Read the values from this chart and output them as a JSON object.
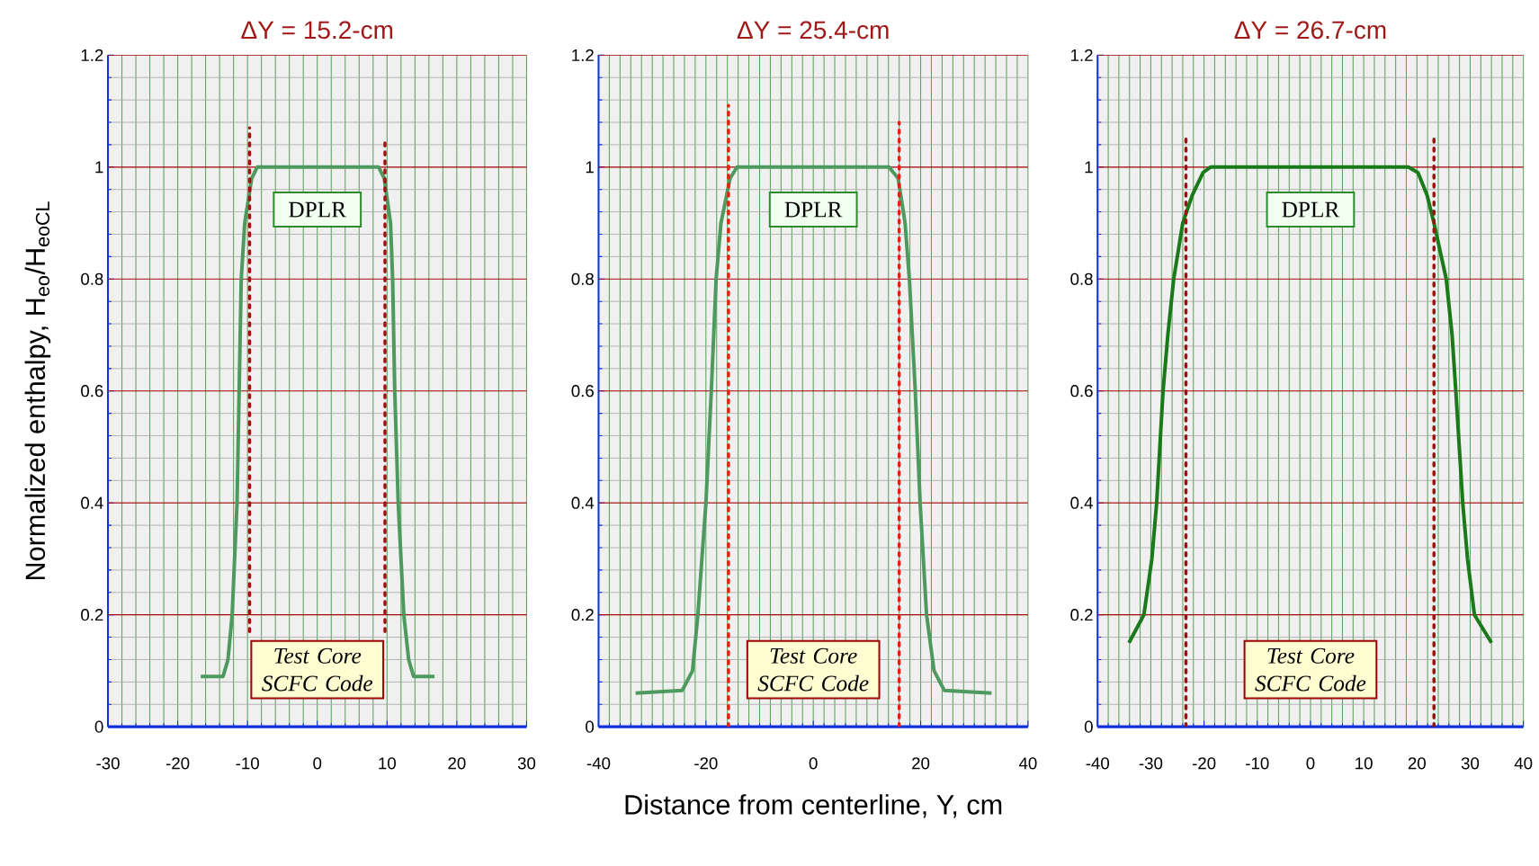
{
  "chart_data": [
    {
      "type": "line",
      "title": "ΔY = 15.2-cm",
      "ylabel": "Normalized enthalpy, H$_{eo}$/H$_{eoCL}$",
      "xlim": [
        -30,
        30
      ],
      "xticks": [
        -30,
        -20,
        -10,
        0,
        10,
        20,
        30
      ],
      "ylim": [
        0,
        1.2
      ],
      "yticks": [
        0,
        0.2,
        0.4,
        0.6,
        0.8,
        1,
        1.2
      ],
      "grid": true,
      "annotations": [
        "DPLR",
        "Test Core SCFC Code"
      ],
      "series": [
        {
          "color": "#4e9a5e",
          "x": [
            -16.7,
            -13.5,
            -12.8,
            -12.2,
            -11.5,
            -11.2,
            -10.9,
            -10.4,
            -9.4,
            -8.6,
            0,
            8.8,
            9.6,
            10.5,
            10.8,
            11.1,
            11.6,
            12.4,
            13.1,
            13.8,
            16.8
          ],
          "values": [
            0.09,
            0.09,
            0.12,
            0.2,
            0.4,
            0.6,
            0.8,
            0.9,
            0.98,
            1,
            1,
            1,
            0.98,
            0.9,
            0.8,
            0.6,
            0.4,
            0.2,
            0.12,
            0.09,
            0.09
          ]
        },
        {
          "color": "#a01010",
          "line_style": "dotted",
          "x": [
            -9.7,
            -9.7
          ],
          "values": [
            0.17,
            1.07
          ]
        },
        {
          "color": "#a01010",
          "line_style": "dotted",
          "x": [
            9.7,
            9.7
          ],
          "values": [
            0.17,
            1.05
          ]
        }
      ]
    },
    {
      "type": "line",
      "title": "ΔY = 25.4-cm",
      "xlabel": "Distance from centerline, Y, cm",
      "xlim": [
        -40,
        40
      ],
      "xticks": [
        -40,
        -20,
        0,
        20,
        40
      ],
      "ylim": [
        0,
        1.2
      ],
      "yticks": [
        0,
        0.2,
        0.4,
        0.6,
        0.8,
        1,
        1.2
      ],
      "grid": true,
      "annotations": [
        "DPLR",
        "Test Core SCFC Code"
      ],
      "series": [
        {
          "color": "#4e9a5e",
          "x": [
            -33.1,
            -24.4,
            -22.5,
            -21.5,
            -20,
            -19,
            -18.1,
            -17.2,
            -15.5,
            -14.2,
            0,
            14.1,
            15.8,
            17.1,
            17.9,
            19,
            19.9,
            21.1,
            22.5,
            24.4,
            33.2
          ],
          "values": [
            0.06,
            0.065,
            0.1,
            0.2,
            0.4,
            0.6,
            0.8,
            0.9,
            0.98,
            1,
            1,
            1,
            0.98,
            0.9,
            0.8,
            0.6,
            0.4,
            0.2,
            0.1,
            0.065,
            0.06
          ]
        },
        {
          "color": "#e82010",
          "line_style": "dotted",
          "x": [
            -15.8,
            -15.8
          ],
          "values": [
            0,
            1.11
          ]
        },
        {
          "color": "#e82010",
          "line_style": "dotted",
          "x": [
            16,
            16
          ],
          "values": [
            0,
            1.08
          ]
        }
      ]
    },
    {
      "type": "line",
      "title": "ΔY = 26.7-cm",
      "xlim": [
        -40,
        40
      ],
      "xticks": [
        -40,
        -30,
        -20,
        -10,
        0,
        10,
        20,
        30,
        40
      ],
      "ylim": [
        0,
        1.2
      ],
      "yticks": [
        0,
        0.2,
        0.4,
        0.6,
        0.8,
        1,
        1.2
      ],
      "grid": true,
      "annotations": [
        "DPLR",
        "Test Core SCFC Code"
      ],
      "series": [
        {
          "color": "#1a7a1a",
          "x": [
            -34.1,
            -31.3,
            -29.8,
            -28.9,
            -28.3,
            -27.7,
            -26.8,
            -25.7,
            -24,
            -22.2,
            -20.2,
            -18.8,
            0,
            18.4,
            20.2,
            21.9,
            23.2,
            25.5,
            26.6,
            27.3,
            28.6,
            29.5,
            30.8,
            34
          ],
          "values": [
            0.15,
            0.2,
            0.3,
            0.4,
            0.5,
            0.6,
            0.7,
            0.8,
            0.9,
            0.95,
            0.99,
            1,
            1,
            1,
            0.99,
            0.95,
            0.9,
            0.8,
            0.7,
            0.6,
            0.4,
            0.3,
            0.2,
            0.15
          ]
        },
        {
          "color": "#a01010",
          "line_style": "dotted",
          "x": [
            -23.4,
            -23.4
          ],
          "values": [
            0,
            1.05
          ]
        },
        {
          "color": "#a01010",
          "line_style": "dotted",
          "x": [
            23.2,
            23.2
          ],
          "values": [
            0,
            1.05
          ]
        }
      ]
    }
  ]
}
